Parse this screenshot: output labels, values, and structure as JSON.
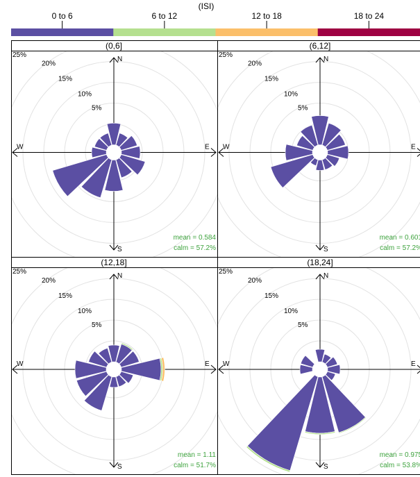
{
  "legend": {
    "title": "(ISI)",
    "items": [
      {
        "label": "0 to 6",
        "color": "#5b4fa3"
      },
      {
        "label": "6 to 12",
        "color": "#b5e08f"
      },
      {
        "label": "12 to 18",
        "color": "#fbbf6a"
      },
      {
        "label": "18 to 24",
        "color": "#9e0142"
      }
    ]
  },
  "directions": {
    "north": "N",
    "south": "S",
    "east": "E",
    "west": "W"
  },
  "rings": [
    "5%",
    "10%",
    "15%",
    "20%",
    "25%"
  ],
  "chart_data": [
    {
      "type": "wind-rose",
      "title": "(0,6]",
      "angles_deg": [
        0,
        30,
        60,
        90,
        120,
        150,
        180,
        210,
        240,
        270,
        300,
        330
      ],
      "series": [
        {
          "name": "0 to 6",
          "values": [
            5.2,
            3.0,
            4.0,
            4.5,
            6.0,
            4.5,
            7.5,
            9.5,
            13.5,
            3.5,
            3.0,
            3.0
          ]
        }
      ],
      "stats": {
        "mean": "mean = 0.584",
        "calm": "calm = 57.2%"
      }
    },
    {
      "type": "wind-rose",
      "title": "(6,12]",
      "angles_deg": [
        0,
        30,
        60,
        90,
        120,
        150,
        180,
        210,
        240,
        270,
        300,
        330
      ],
      "series": [
        {
          "name": "0 to 6",
          "values": [
            7.0,
            5.5,
            4.5,
            5.0,
            3.0,
            2.5,
            2.5,
            1.5,
            10.5,
            6.5,
            4.0,
            5.0
          ]
        }
      ],
      "stats": {
        "mean": "mean = 0.601",
        "calm": "calm = 57.2%"
      }
    },
    {
      "type": "wind-rose",
      "title": "(12,18]",
      "angles_deg": [
        0,
        30,
        60,
        90,
        120,
        150,
        180,
        210,
        240,
        270,
        300,
        330
      ],
      "series": [
        {
          "name": "0 to 6",
          "values": [
            4.0,
            4.5,
            4.5,
            9.5,
            3.0,
            2.5,
            2.5,
            8.5,
            7.5,
            7.5,
            4.5,
            3.5
          ]
        },
        {
          "name": "6 to 12",
          "values": [
            0,
            0.3,
            0,
            0.4,
            0,
            0,
            0,
            0,
            0,
            0,
            0,
            0
          ]
        },
        {
          "name": "12 to 18",
          "values": [
            0,
            0,
            0,
            0.5,
            0,
            0,
            0,
            0,
            0,
            0,
            0,
            0
          ]
        }
      ],
      "stats": {
        "mean": "mean = 1.11",
        "calm": "calm = 51.7%"
      }
    },
    {
      "type": "wind-rose",
      "title": "(18,24]",
      "angles_deg": [
        0,
        30,
        60,
        90,
        120,
        150,
        180,
        210,
        240,
        270,
        300,
        330
      ],
      "series": [
        {
          "name": "0 to 6",
          "values": [
            3.0,
            2.0,
            2.5,
            3.0,
            2.0,
            14.0,
            13.5,
            23.5,
            0,
            3.0,
            3.0,
            0
          ]
        },
        {
          "name": "6 to 12",
          "values": [
            0,
            0,
            0,
            0,
            0,
            0.2,
            0.3,
            0.4,
            0,
            0,
            0,
            0
          ]
        }
      ],
      "stats": {
        "mean": "mean = 0.975",
        "calm": "calm = 53.8%"
      }
    }
  ]
}
